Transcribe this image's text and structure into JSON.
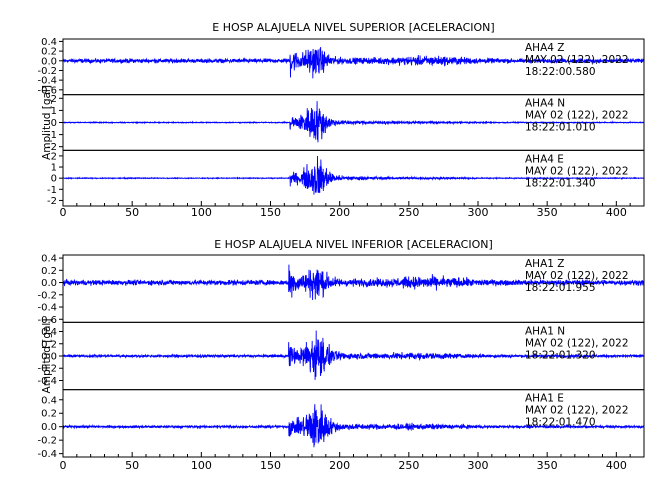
{
  "figure": {
    "trace_color": "#0000ff",
    "axis_color": "#000000"
  },
  "chart_data": [
    {
      "type": "line",
      "title": "E HOSP ALAJUELA NIVEL SUPERIOR [ACELERACION]",
      "ylabel": "Amplitud [gal]",
      "xlim": [
        0,
        420
      ],
      "x_ticks": [
        "0",
        "50",
        "100",
        "150",
        "200",
        "250",
        "300",
        "350",
        "400"
      ],
      "grid": false,
      "series": [
        {
          "name": "AHA4 Z",
          "station": "AHA4",
          "component": "Z",
          "date": "MAY 02 (122), 2022",
          "time": "18:22:00.580",
          "ylim": [
            -0.7,
            0.45
          ],
          "y_ticks": [
            "0.4",
            "0.2",
            "0.0",
            "-0.2",
            "-0.4",
            "-0.6"
          ],
          "envelope": {
            "onset": 164,
            "onset_amp": 0.45,
            "peak_time": 182,
            "peak_amp": 0.35,
            "background": 0.06,
            "coda_hump_time": 265,
            "coda_hump_amp": 0.08
          }
        },
        {
          "name": "AHA4 N",
          "station": "AHA4",
          "component": "N",
          "date": "MAY 02 (122), 2022",
          "time": "18:22:01.010",
          "ylim": [
            -2.3,
            2.3
          ],
          "y_ticks": [
            "2",
            "1",
            "0",
            "-1",
            "-2"
          ],
          "envelope": {
            "onset": 164,
            "onset_amp": 0.6,
            "peak_time": 182,
            "peak_amp": 2.1,
            "background": 0.05,
            "coda_hump_time": 260,
            "coda_hump_amp": 0.05
          }
        },
        {
          "name": "AHA4 E",
          "station": "AHA4",
          "component": "E",
          "date": "MAY 02 (122), 2022",
          "time": "18:22:01.340",
          "ylim": [
            -2.5,
            2.5
          ],
          "y_ticks": [
            "2",
            "1",
            "0",
            "-1",
            "-2"
          ],
          "envelope": {
            "onset": 164,
            "onset_amp": 0.5,
            "peak_time": 183,
            "peak_amp": 2.3,
            "background": 0.05,
            "coda_hump_time": 260,
            "coda_hump_amp": 0.05
          }
        }
      ]
    },
    {
      "type": "line",
      "title": "E HOSP ALAJUELA NIVEL INFERIOR [ACELERACION]",
      "ylabel": "Amplitud [gal]",
      "xlim": [
        0,
        420
      ],
      "x_ticks": [
        "0",
        "50",
        "100",
        "150",
        "200",
        "250",
        "300",
        "350",
        "400"
      ],
      "grid": false,
      "series": [
        {
          "name": "AHA1 Z",
          "station": "AHA1",
          "component": "Z",
          "date": "MAY 02 (122), 2022",
          "time": "18:22:01.955",
          "ylim": [
            -0.65,
            0.45
          ],
          "y_ticks": [
            "0.4",
            "0.2",
            "0.0",
            "-0.2",
            "-0.4",
            "-0.6"
          ],
          "envelope": {
            "onset": 163,
            "onset_amp": 0.42,
            "peak_time": 183,
            "peak_amp": 0.3,
            "background": 0.06,
            "coda_hump_time": 265,
            "coda_hump_amp": 0.08
          }
        },
        {
          "name": "AHA1 N",
          "station": "AHA1",
          "component": "N",
          "date": "MAY 02 (122), 2022",
          "time": "18:22:01.320",
          "ylim": [
            -0.55,
            0.55
          ],
          "y_ticks": [
            "0.4",
            "0.2",
            "0.0",
            "-0.2",
            "-0.4"
          ],
          "envelope": {
            "onset": 163,
            "onset_amp": 0.2,
            "peak_time": 183,
            "peak_amp": 0.48,
            "background": 0.03,
            "coda_hump_time": 260,
            "coda_hump_amp": 0.04
          }
        },
        {
          "name": "AHA1 E",
          "station": "AHA1",
          "component": "E",
          "date": "MAY 02 (122), 2022",
          "time": "18:22:01.470",
          "ylim": [
            -0.45,
            0.55
          ],
          "y_ticks": [
            "0.4",
            "0.2",
            "0.0",
            "-0.2",
            "-0.4"
          ],
          "envelope": {
            "onset": 163,
            "onset_amp": 0.15,
            "peak_time": 183,
            "peak_amp": 0.45,
            "background": 0.025,
            "coda_hump_time": 260,
            "coda_hump_amp": 0.03
          }
        }
      ]
    }
  ]
}
